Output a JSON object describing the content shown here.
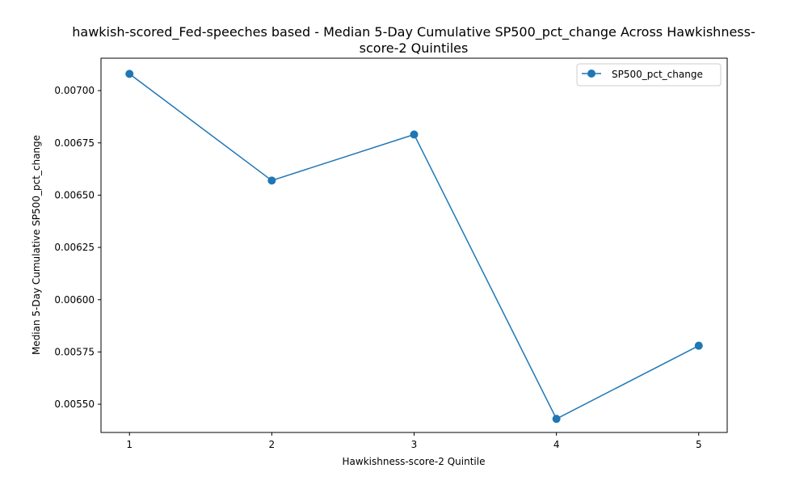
{
  "chart_data": {
    "type": "line",
    "title_line1": "hawkish-scored_Fed-speeches based - Median 5-Day Cumulative SP500_pct_change Across Hawkishness-",
    "title_line2": "score-2 Quintiles",
    "xlabel": "Hawkishness-score-2 Quintile",
    "ylabel": "Median 5-Day Cumulative SP500_pct_change",
    "x": [
      1,
      2,
      3,
      4,
      5
    ],
    "x_tick_labels": [
      "1",
      "2",
      "3",
      "4",
      "5"
    ],
    "xlim": [
      0.8,
      5.2
    ],
    "y_ticks": [
      0.0055,
      0.00575,
      0.006,
      0.00625,
      0.0065,
      0.00675,
      0.007
    ],
    "y_tick_labels": [
      "0.00550",
      "0.00575",
      "0.00600",
      "0.00625",
      "0.00650",
      "0.00675",
      "0.00700"
    ],
    "ylim": [
      0.005365,
      0.007155
    ],
    "grid": false,
    "legend_position": "upper right",
    "series": [
      {
        "name": "SP500_pct_change",
        "color": "#1f77b4",
        "marker": "circle",
        "values": [
          0.00708,
          0.00657,
          0.00679,
          0.00543,
          0.00578
        ]
      }
    ]
  }
}
